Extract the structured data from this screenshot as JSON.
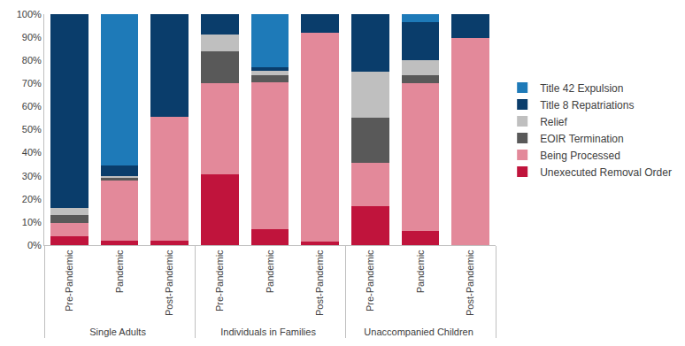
{
  "chart_data": {
    "type": "bar",
    "stacked": true,
    "grid": false,
    "legend": "right",
    "categories": [
      [
        "Single Adults",
        "Pre-Pandemic"
      ],
      [
        "Single Adults",
        "Pandemic"
      ],
      [
        "Single Adults",
        "Post-Pandemic"
      ],
      [
        "Individuals in Families",
        "Pre-Pandemic"
      ],
      [
        "Individuals in Families",
        "Pandemic"
      ],
      [
        "Individuals in Families",
        "Post-Pandemic"
      ],
      [
        "Unaccompanied Children",
        "Pre-Pandemic"
      ],
      [
        "Unaccompanied Children",
        "Pandemic"
      ],
      [
        "Unaccompanied Children",
        "Post-Pandemic"
      ]
    ],
    "series": [
      {
        "name": "Unexecuted Removal Order",
        "color": "#c0143c",
        "values": [
          4,
          2,
          2,
          30.5,
          7,
          1.5,
          17,
          6,
          0
        ]
      },
      {
        "name": "Being Processed",
        "color": "#e3899a",
        "values": [
          5.5,
          26,
          53.5,
          39.5,
          63.5,
          90.5,
          18.5,
          64,
          89.5
        ]
      },
      {
        "name": "EOIR Termination",
        "color": "#595959",
        "values": [
          3.5,
          1,
          0,
          14,
          3,
          0,
          19.5,
          3.5,
          0
        ]
      },
      {
        "name": "Relief",
        "color": "#bfbfbf",
        "values": [
          3,
          1,
          0,
          7,
          2,
          0,
          20,
          6.5,
          0
        ]
      },
      {
        "name": "Title 8 Repatriations",
        "color": "#0a3d6b",
        "values": [
          84,
          4.5,
          44.5,
          9,
          1.5,
          8,
          25,
          16.5,
          10.5
        ]
      },
      {
        "name": "Title 42 Expulsion",
        "color": "#1e7ab8",
        "values": [
          0,
          65.5,
          0,
          0,
          23,
          0,
          0,
          3.5,
          0
        ]
      }
    ],
    "ylim": [
      0,
      100
    ],
    "yticks": [
      {
        "value": 0,
        "label": "0%"
      },
      {
        "value": 10,
        "label": "10%"
      },
      {
        "value": 20,
        "label": "20%"
      },
      {
        "value": 30,
        "label": "30%"
      },
      {
        "value": 40,
        "label": "40%"
      },
      {
        "value": 50,
        "label": "50%"
      },
      {
        "value": 60,
        "label": "60%"
      },
      {
        "value": 70,
        "label": "70%"
      },
      {
        "value": 80,
        "label": "80%"
      },
      {
        "value": 90,
        "label": "90%"
      },
      {
        "value": 100,
        "label": "100%"
      }
    ]
  }
}
